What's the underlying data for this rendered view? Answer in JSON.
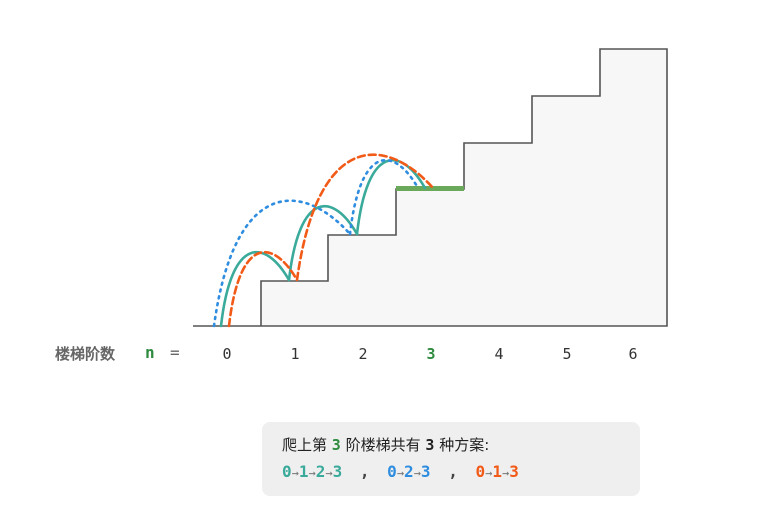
{
  "stair": {
    "label": "楼梯阶数",
    "variable": "n",
    "equals": "=",
    "steps": [
      "0",
      "1",
      "2",
      "3",
      "4",
      "5",
      "6"
    ],
    "highlight_step": 3
  },
  "colors": {
    "teal": "#3aaa9b",
    "blue": "#2f8de0",
    "orange": "#f25a18",
    "highlight": "#2e8b3f",
    "stair_fill": "#f7f7f7",
    "stair_line": "#555555"
  },
  "paths": [
    {
      "color": "teal",
      "style": "solid",
      "from": [
        0,
        1,
        2
      ],
      "to": [
        1,
        2,
        3
      ]
    },
    {
      "color": "blue",
      "style": "dotted",
      "from": [
        0,
        2
      ],
      "to": [
        2,
        3
      ]
    },
    {
      "color": "orange",
      "style": "dashed",
      "from": [
        0,
        1
      ],
      "to": [
        1,
        3
      ]
    }
  ],
  "info": {
    "line1": {
      "prefix": "爬上第",
      "n": "3",
      "mid": "阶楼梯共有",
      "count": "3",
      "suffix": "种方案:"
    },
    "solutions": [
      {
        "color": "teal",
        "steps": [
          "0",
          "1",
          "2",
          "3"
        ]
      },
      {
        "color": "blue",
        "steps": [
          "0",
          "2",
          "3"
        ]
      },
      {
        "color": "orange",
        "steps": [
          "0",
          "1",
          "3"
        ]
      }
    ],
    "arrow": "→",
    "comma": ","
  }
}
